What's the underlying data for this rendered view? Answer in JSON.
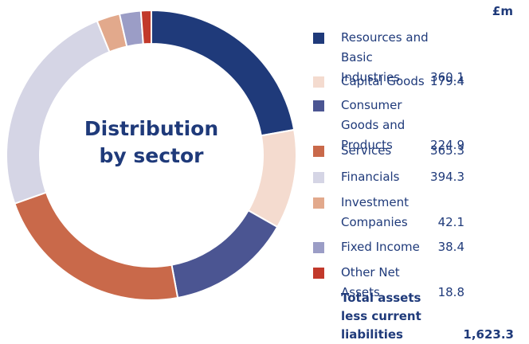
{
  "chart_data": {
    "type": "donut",
    "title": "Distribution by sector",
    "unit_label": "£m",
    "categories": [
      "Resources and Basic Industries",
      "Capital Goods",
      "Consumer Goods and Products",
      "Services",
      "Financials",
      "Investment Companies",
      "Fixed Income",
      "Other Net Assets"
    ],
    "values": [
      360.1,
      179.4,
      224.9,
      365.3,
      394.3,
      42.1,
      38.4,
      18.8
    ],
    "colors": [
      "#1f3a7a",
      "#f4dbcf",
      "#4b5592",
      "#c9694a",
      "#d5d5e5",
      "#e2a98c",
      "#9b9dc6",
      "#c2392b"
    ],
    "total": {
      "label": "Total assets less current liabilities",
      "value": 1623.3,
      "value_label": "1,623.3"
    }
  }
}
